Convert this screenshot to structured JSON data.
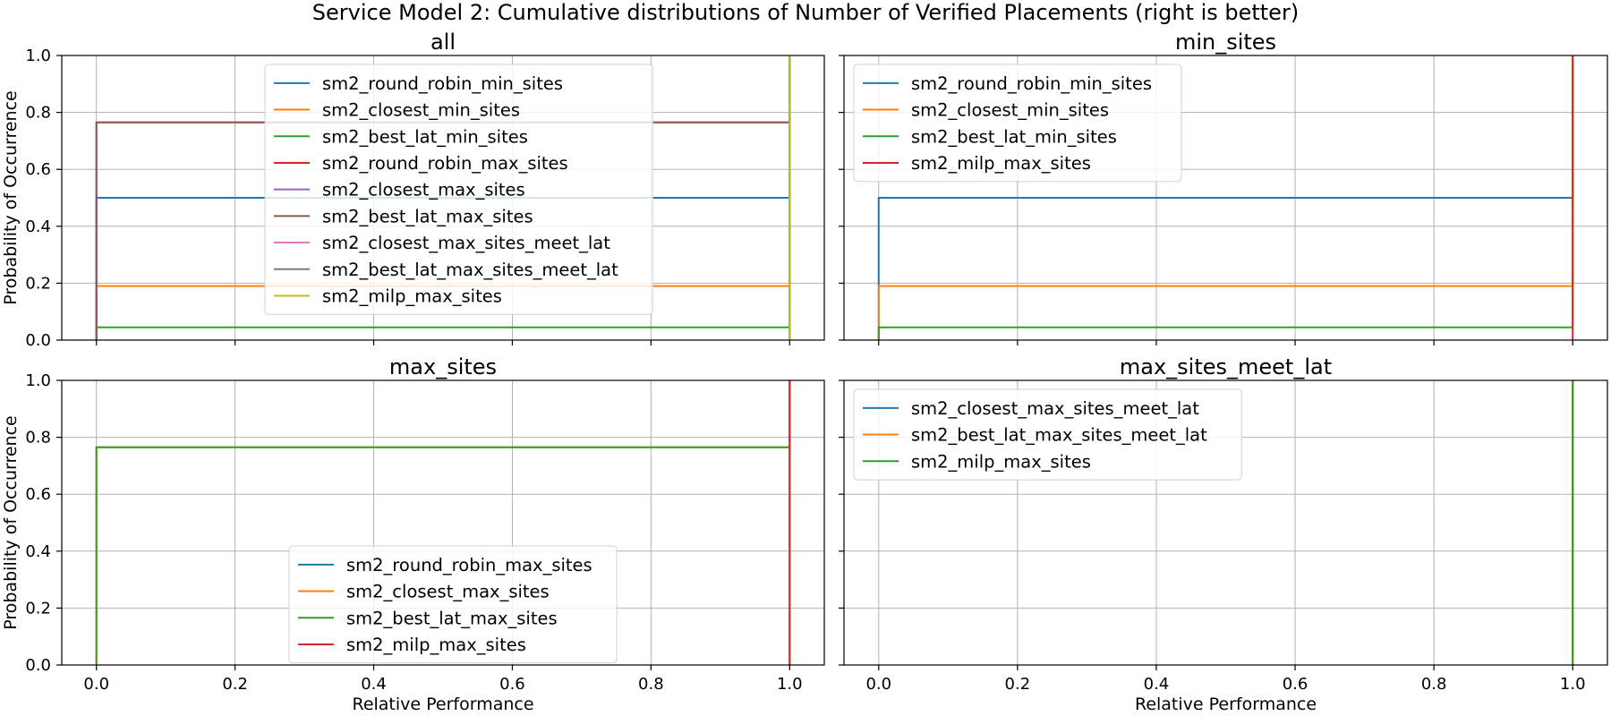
{
  "figure": {
    "title": "Service Model 2: Cumulative distributions of Number of Verified Placements (right is better)"
  },
  "colors": {
    "C0": "#1f77b4",
    "C1": "#ff7f0e",
    "C2": "#2ca02c",
    "C3": "#d62728",
    "C4": "#9467bd",
    "C5": "#8c564b",
    "C6": "#e377c2",
    "C7": "#7f7f7f",
    "C8": "#bcbd22"
  },
  "chart_data": [
    {
      "type": "line",
      "title": "all",
      "xlabel": "",
      "ylabel": "Probability of Occurrence",
      "xlim": [
        -0.05,
        1.05
      ],
      "ylim": [
        0,
        1
      ],
      "xticks": [
        "0.0",
        "0.2",
        "0.4",
        "0.6",
        "0.8",
        "1.0"
      ],
      "yticks": [
        "0.0",
        "0.2",
        "0.4",
        "0.6",
        "0.8",
        "1.0"
      ],
      "grid": true,
      "legend_loc": "upper center",
      "series": [
        {
          "name": "sm2_round_robin_min_sites",
          "color": "C0",
          "x": [
            0,
            0,
            1,
            1
          ],
          "y": [
            0,
            0.5,
            0.5,
            1.0
          ]
        },
        {
          "name": "sm2_closest_min_sites",
          "color": "C1",
          "x": [
            0,
            0,
            1,
            1
          ],
          "y": [
            0,
            0.19,
            0.19,
            1.0
          ]
        },
        {
          "name": "sm2_best_lat_min_sites",
          "color": "C2",
          "x": [
            0,
            0,
            1,
            1
          ],
          "y": [
            0,
            0.045,
            0.045,
            1.0
          ]
        },
        {
          "name": "sm2_round_robin_max_sites",
          "color": "C3",
          "x": [
            1,
            1
          ],
          "y": [
            0,
            1.0
          ]
        },
        {
          "name": "sm2_closest_max_sites",
          "color": "C4",
          "x": [
            0,
            0,
            1,
            1
          ],
          "y": [
            0,
            0.765,
            0.765,
            1.0
          ]
        },
        {
          "name": "sm2_best_lat_max_sites",
          "color": "C5",
          "x": [
            0,
            0,
            1,
            1
          ],
          "y": [
            0,
            0.765,
            0.765,
            1.0
          ]
        },
        {
          "name": "sm2_closest_max_sites_meet_lat",
          "color": "C6",
          "x": [
            1,
            1
          ],
          "y": [
            0,
            1.0
          ]
        },
        {
          "name": "sm2_best_lat_max_sites_meet_lat",
          "color": "C7",
          "x": [
            1,
            1
          ],
          "y": [
            0,
            1.0
          ]
        },
        {
          "name": "sm2_milp_max_sites",
          "color": "C8",
          "x": [
            1,
            1
          ],
          "y": [
            0,
            1.0
          ]
        }
      ]
    },
    {
      "type": "line",
      "title": "min_sites",
      "xlabel": "",
      "ylabel": "",
      "xlim": [
        -0.05,
        1.05
      ],
      "ylim": [
        0,
        1
      ],
      "xticks": [
        "0.0",
        "0.2",
        "0.4",
        "0.6",
        "0.8",
        "1.0"
      ],
      "yticks": [
        "0.0",
        "0.2",
        "0.4",
        "0.6",
        "0.8",
        "1.0"
      ],
      "grid": true,
      "legend_loc": "upper left",
      "series": [
        {
          "name": "sm2_round_robin_min_sites",
          "color": "C0",
          "x": [
            0,
            0,
            1,
            1
          ],
          "y": [
            0,
            0.5,
            0.5,
            1.0
          ]
        },
        {
          "name": "sm2_closest_min_sites",
          "color": "C1",
          "x": [
            0,
            0,
            1,
            1
          ],
          "y": [
            0,
            0.19,
            0.19,
            1.0
          ]
        },
        {
          "name": "sm2_best_lat_min_sites",
          "color": "C2",
          "x": [
            0,
            0,
            1,
            1
          ],
          "y": [
            0,
            0.045,
            0.045,
            1.0
          ]
        },
        {
          "name": "sm2_milp_max_sites",
          "color": "C3",
          "x": [
            1,
            1
          ],
          "y": [
            0,
            1.0
          ]
        }
      ]
    },
    {
      "type": "line",
      "title": "max_sites",
      "xlabel": "Relative Performance",
      "ylabel": "Probability of Occurrence",
      "xlim": [
        -0.05,
        1.05
      ],
      "ylim": [
        0,
        1
      ],
      "xticks": [
        "0.0",
        "0.2",
        "0.4",
        "0.6",
        "0.8",
        "1.0"
      ],
      "yticks": [
        "0.0",
        "0.2",
        "0.4",
        "0.6",
        "0.8",
        "1.0"
      ],
      "grid": true,
      "legend_loc": "lower center",
      "series": [
        {
          "name": "sm2_round_robin_max_sites",
          "color": "C0",
          "x": [
            1,
            1
          ],
          "y": [
            0,
            1.0
          ]
        },
        {
          "name": "sm2_closest_max_sites",
          "color": "C1",
          "x": [
            0,
            0,
            1,
            1
          ],
          "y": [
            0,
            0.765,
            0.765,
            1.0
          ]
        },
        {
          "name": "sm2_best_lat_max_sites",
          "color": "C2",
          "x": [
            0,
            0,
            1,
            1
          ],
          "y": [
            0,
            0.765,
            0.765,
            1.0
          ]
        },
        {
          "name": "sm2_milp_max_sites",
          "color": "C3",
          "x": [
            1,
            1
          ],
          "y": [
            0,
            1.0
          ]
        }
      ]
    },
    {
      "type": "line",
      "title": "max_sites_meet_lat",
      "xlabel": "Relative Performance",
      "ylabel": "",
      "xlim": [
        -0.05,
        1.05
      ],
      "ylim": [
        0,
        1
      ],
      "xticks": [
        "0.0",
        "0.2",
        "0.4",
        "0.6",
        "0.8",
        "1.0"
      ],
      "yticks": [
        "0.0",
        "0.2",
        "0.4",
        "0.6",
        "0.8",
        "1.0"
      ],
      "grid": true,
      "legend_loc": "upper left",
      "series": [
        {
          "name": "sm2_closest_max_sites_meet_lat",
          "color": "C0",
          "x": [
            1,
            1
          ],
          "y": [
            0,
            1.0
          ]
        },
        {
          "name": "sm2_best_lat_max_sites_meet_lat",
          "color": "C1",
          "x": [
            1,
            1
          ],
          "y": [
            0,
            1.0
          ]
        },
        {
          "name": "sm2_milp_max_sites",
          "color": "C2",
          "x": [
            1,
            1
          ],
          "y": [
            0,
            1.0
          ]
        }
      ]
    }
  ]
}
